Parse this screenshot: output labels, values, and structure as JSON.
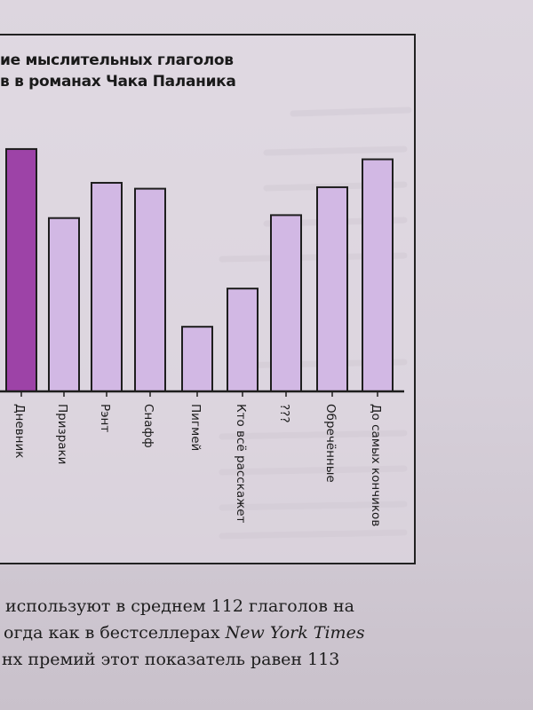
{
  "chart_data": {
    "type": "bar",
    "title_lines": [
      "ие мыслительных глаголов",
      "в в романах Чака Паланика"
    ],
    "categories": [
      "Дневник",
      "Призраки",
      "Рэнт",
      "Снафф",
      "Пигмей",
      "Кто всё расскажет",
      "???",
      "Обречённые",
      "До самых кончиков"
    ],
    "values": [
      165,
      118,
      142,
      138,
      44,
      70,
      120,
      139,
      158
    ],
    "highlight_index": 0,
    "ylim": [
      0,
      200
    ],
    "grid": false,
    "legend": "none",
    "colors": {
      "bar": "#d2b8e4",
      "bar_highlight": "#9d43a7",
      "outline": "#1e1e1e"
    }
  },
  "body_text": {
    "line1": "используют в среднем 112 глаголов на",
    "line2_pre": "огда как в бестселлерах ",
    "line2_italic": "New York Times",
    "line3": "нх премий этот показатель равен 113"
  }
}
